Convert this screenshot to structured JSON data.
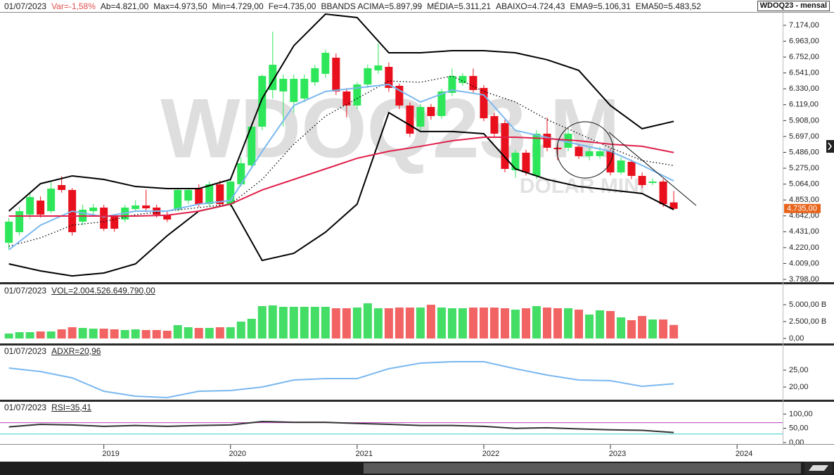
{
  "chart_data": {
    "type": "candlestick",
    "header": [
      "01/07/2023",
      "Var=-1,58%",
      "Ab=4.821,00",
      "Max=4.973,50",
      "Min=4.729,00",
      "Fe=4.735,00",
      "BBANDS ACIMA=5.897,99",
      "MÉDIA=5.311,21",
      "ABAIXO=4.724,43",
      "EMA9=5.106,31",
      "EMA50=5.483,52"
    ],
    "symbol": "WDOQ23 - mensal",
    "watermark": "WDOQ23.M",
    "watermark_sub": "DOLAR MINI",
    "last_label": "4.735,00",
    "x": [
      2018.25,
      2018.3333,
      2018.4167,
      2018.5,
      2018.5833,
      2018.6667,
      2018.75,
      2018.8333,
      2018.9167,
      2019,
      2019.0833,
      2019.1667,
      2019.25,
      2019.3333,
      2019.4167,
      2019.5,
      2019.5833,
      2019.6667,
      2019.75,
      2019.8333,
      2019.9167,
      2020,
      2020.0833,
      2020.1667,
      2020.25,
      2020.3333,
      2020.4167,
      2020.5,
      2020.5833,
      2020.6667,
      2020.75,
      2020.8333,
      2020.9167,
      2021,
      2021.0833,
      2021.1667,
      2021.25,
      2021.3333,
      2021.4167,
      2021.5,
      2021.5833,
      2021.6667,
      2021.75,
      2021.8333,
      2021.9167,
      2022,
      2022.0833,
      2022.1667,
      2022.25,
      2022.3333,
      2022.4167,
      2022.5,
      2022.5833,
      2022.6667,
      2022.75,
      2022.8333,
      2022.9167,
      2023,
      2023.0833,
      2023.1667,
      2023.25,
      2023.3333,
      2023.4167,
      2023.5
    ],
    "xlim": [
      2018.18,
      2024.36
    ],
    "xticks": [
      2019,
      2020,
      2021,
      2022,
      2023,
      2024
    ],
    "open": [
      4284,
      4425,
      4658,
      4845,
      4705,
      5051,
      4986,
      4565,
      4705,
      4752,
      4630,
      4593,
      4733,
      4780,
      4752,
      4658,
      4724,
      4845,
      5004,
      4798,
      5061,
      4798,
      5061,
      5313,
      5827,
      6314,
      6295,
      6155,
      6201,
      6417,
      6529,
      6744,
      6295,
      6108,
      6388,
      6575,
      6622,
      6370,
      6108,
      5827,
      6089,
      5968,
      6276,
      6407,
      6501,
      6342,
      5968,
      5874,
      5248,
      5481,
      5173,
      5734,
      5547,
      5547,
      5560,
      5435,
      5435,
      5500,
      5219,
      5360,
      5173,
      5079,
      5098,
      4821
    ],
    "high": [
      4610,
      4760,
      4950,
      4900,
      5090,
      5170,
      5010,
      4790,
      4800,
      4790,
      4660,
      4790,
      4850,
      4990,
      4790,
      4700,
      5010,
      5010,
      5060,
      5100,
      5110,
      5150,
      5420,
      5870,
      6520,
      7090,
      6520,
      6520,
      6520,
      6650,
      6850,
      6800,
      6340,
      6420,
      6650,
      6931,
      6680,
      6400,
      6150,
      6130,
      6130,
      6330,
      6600,
      6540,
      6600,
      6380,
      6010,
      5920,
      5520,
      5520,
      5780,
      5950,
      5620,
      5780,
      5600,
      5560,
      5560,
      5540,
      5420,
      5390,
      5220,
      5140,
      5130,
      4973.5
    ],
    "low": [
      4200,
      4380,
      4600,
      4620,
      4680,
      4950,
      4380,
      4520,
      4660,
      4440,
      4430,
      4560,
      4700,
      4690,
      4620,
      4560,
      4700,
      4800,
      4760,
      4770,
      4760,
      4760,
      5030,
      5280,
      5780,
      6200,
      5827,
      6014,
      6150,
      6370,
      6480,
      6250,
      5950,
      6060,
      6340,
      6530,
      6290,
      6060,
      5690,
      5780,
      5920,
      5930,
      6230,
      6370,
      6270,
      5900,
      5690,
      5220,
      5150,
      5180,
      5130,
      5500,
      5380,
      5500,
      5400,
      5380,
      5400,
      5180,
      5190,
      5130,
      5010,
      5050,
      4760,
      4729
    ],
    "close": [
      4565,
      4705,
      4892,
      4658,
      5004,
      4986,
      4425,
      4724,
      4752,
      4471,
      4471,
      4752,
      4780,
      4742,
      4658,
      4593,
      4986,
      4986,
      4798,
      5061,
      4798,
      5098,
      5341,
      5827,
      6501,
      6650,
      6463,
      6463,
      6463,
      6604,
      6809,
      6295,
      6108,
      6388,
      6604,
      6641,
      6342,
      6108,
      5734,
      6089,
      5968,
      6295,
      6501,
      6501,
      6314,
      5939,
      5734,
      5266,
      5481,
      5219,
      5734,
      5547,
      5528,
      5734,
      5435,
      5500,
      5500,
      5219,
      5378,
      5173,
      5051,
      5098,
      4798,
      4735
    ],
    "up_color": "#2ee65a",
    "down_color": "#e8101c",
    "ylim": [
      3770,
      7342
    ],
    "yticks": [
      {
        "value": 3798,
        "label": "3.798,00"
      },
      {
        "value": 4009,
        "label": "4.009,00"
      },
      {
        "value": 4220,
        "label": "4.220,00"
      },
      {
        "value": 4431,
        "label": "4.431,00"
      },
      {
        "value": 4642,
        "label": "4.642,00"
      },
      {
        "value": 4853,
        "label": "4.853,00"
      },
      {
        "value": 5064,
        "label": "5.064,00"
      },
      {
        "value": 5275,
        "label": "5.275,00"
      },
      {
        "value": 5486,
        "label": "5.486,00"
      },
      {
        "value": 5697,
        "label": "5.697,00"
      },
      {
        "value": 5908,
        "label": "5.908,00"
      },
      {
        "value": 6119,
        "label": "6.119,00"
      },
      {
        "value": 6330,
        "label": "6.330,00"
      },
      {
        "value": 6541,
        "label": "6.541,00"
      },
      {
        "value": 6752,
        "label": "6.752,00"
      },
      {
        "value": 6963,
        "label": "6.963,00"
      },
      {
        "value": 7174,
        "label": "7.174,00"
      }
    ],
    "overlay_x": [
      2018.25,
      2018.5,
      2018.75,
      2019,
      2019.25,
      2019.5,
      2019.75,
      2020,
      2020.25,
      2020.5,
      2020.75,
      2021,
      2021.25,
      2021.5,
      2021.75,
      2022,
      2022.25,
      2022.5,
      2022.75,
      2023,
      2023.25,
      2023.5
    ],
    "overlays": [
      {
        "color": "#000000",
        "style": "solid",
        "values": [
          4705,
          5070,
          5173,
          5126,
          5032,
          5004,
          5004,
          5126,
          6201,
          6903,
          7323,
          7277,
          6809,
          6809,
          6837,
          6837,
          6809,
          6716,
          6575,
          6108,
          5800,
          5897.99
        ]
      },
      {
        "color": "#000000",
        "style": "dotted",
        "values": [
          4237,
          4350,
          4518,
          4565,
          4658,
          4705,
          4752,
          4798,
          5126,
          5594,
          5968,
          6201,
          6434,
          6417,
          6501,
          6295,
          6155,
          5921,
          5734,
          5547,
          5378,
          5311.21
        ]
      },
      {
        "color": "#000000",
        "style": "solid",
        "values": [
          4004,
          3910,
          3844,
          3882,
          4004,
          4378,
          4705,
          4798,
          4050,
          4144,
          4425,
          4798,
          6014,
          5763,
          5763,
          5734,
          5266,
          5126,
          5032,
          4986,
          4939,
          4724.43
        ]
      },
      {
        "color": "#7ab8f0",
        "style": "solid",
        "values": [
          4191,
          4518,
          4705,
          4630,
          4705,
          4705,
          4798,
          4845,
          5500,
          6108,
          6295,
          6342,
          6388,
          6155,
          6314,
          6249,
          5777,
          5684,
          5590,
          5500,
          5313,
          5106.31
        ]
      },
      {
        "color": "#e0204a",
        "style": "solid",
        "values": [
          4640,
          4640,
          4640,
          4640,
          4640,
          4650,
          4705,
          4798,
          4986,
          5126,
          5266,
          5407,
          5500,
          5566,
          5640,
          5687,
          5687,
          5668,
          5640,
          5594,
          5566,
          5483.52
        ]
      }
    ],
    "panels": [
      {
        "type": "bar",
        "label": [
          "01/07/2023",
          "VOL=2.004.526.649.790,00"
        ],
        "values": [
          729,
          938,
          938,
          1042,
          1042,
          1354,
          1667,
          1563,
          1458,
          1458,
          1354,
          1250,
          1354,
          1250,
          1250,
          1146,
          1979,
          1667,
          1563,
          1563,
          1667,
          1667,
          2500,
          2917,
          4792,
          4896,
          4688,
          4688,
          4688,
          4688,
          4688,
          4479,
          4479,
          4583,
          5208,
          4479,
          4479,
          4583,
          4583,
          4583,
          5000,
          4583,
          4479,
          4479,
          4583,
          4583,
          4583,
          4479,
          4271,
          4479,
          4792,
          4583,
          4479,
          4479,
          4271,
          3542,
          4167,
          4063,
          3125,
          2708,
          3333,
          2813,
          2813,
          2004.53
        ],
        "up_color": "#44dd66",
        "down_color": "#f26464",
        "ylim": [
          -729,
          7708
        ],
        "yticks": [
          {
            "value": 0,
            "label": "0,00"
          },
          {
            "value": 2500,
            "label": "2.500,00 B"
          },
          {
            "value": 5000,
            "label": "5.000,00 B"
          }
        ]
      },
      {
        "type": "line",
        "label": [
          "01/07/2023",
          "ADXR=20,96"
        ],
        "values": [
          25.63,
          24.58,
          22.71,
          18.75,
          17.29,
          16.88,
          18.75,
          18.96,
          20,
          22.08,
          22.5,
          22.5,
          25.42,
          27.08,
          27.5,
          27.5,
          25.42,
          23.54,
          22.08,
          21.88,
          20.21,
          20.96
        ],
        "color": "#7ab8f0",
        "ylim": [
          16.25,
          31.875
        ],
        "yticks": [
          {
            "value": 20,
            "label": "20,00"
          },
          {
            "value": 25,
            "label": "25,00"
          }
        ]
      },
      {
        "type": "line",
        "label": [
          "01/07/2023",
          "RSI=35,41"
        ],
        "values": [
          55,
          64,
          62,
          57,
          60,
          57,
          60,
          62,
          74,
          71,
          71,
          67,
          64,
          60,
          60,
          57,
          50,
          52,
          48,
          45,
          43,
          35.41
        ],
        "color": "#333333",
        "ylim": [
          -5,
          138
        ],
        "yticks": [
          {
            "value": 0,
            "label": "0,00"
          },
          {
            "value": 50,
            "label": "50,00"
          },
          {
            "value": 100,
            "label": "100,00"
          }
        ],
        "bands": [
          {
            "value": 70,
            "color": "#c040c0"
          },
          {
            "value": 30,
            "color": "#30d0d0"
          }
        ]
      }
    ]
  }
}
